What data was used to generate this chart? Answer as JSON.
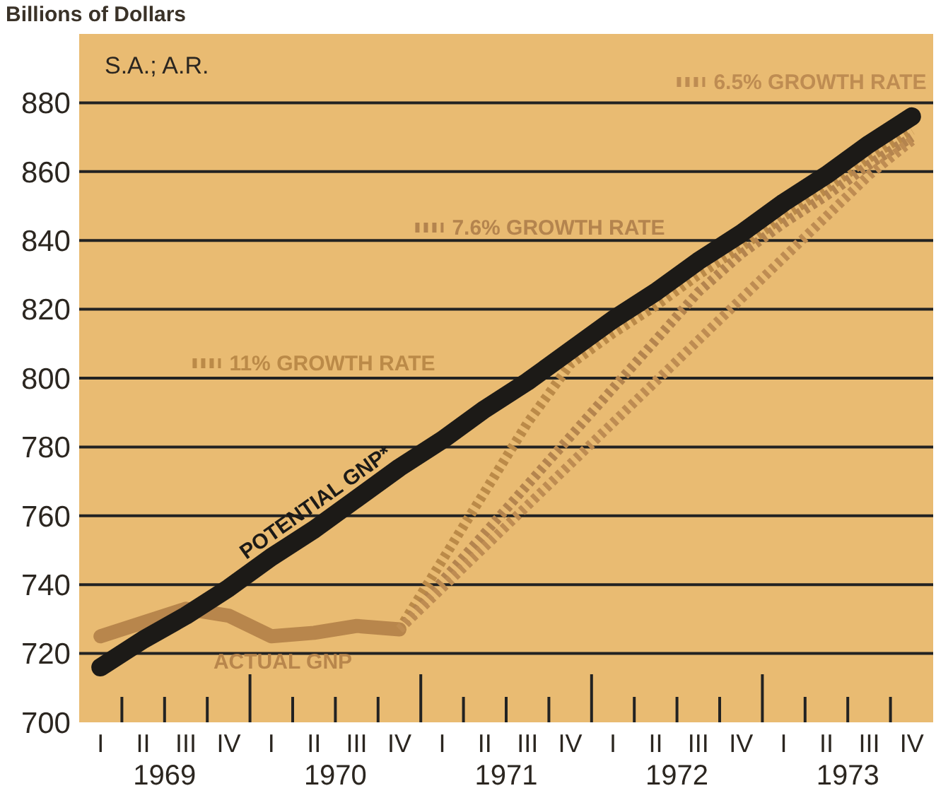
{
  "chart_data": {
    "type": "line",
    "ylabel": "Billions of Dollars",
    "annotations": [
      "S.A.; A.R.",
      "1969",
      "1970",
      "1971",
      "1972",
      "1973"
    ],
    "categories": [
      "I",
      "II",
      "III",
      "IV",
      "I",
      "II",
      "III",
      "IV",
      "I",
      "II",
      "III",
      "IV",
      "I",
      "II",
      "III",
      "IV",
      "I",
      "II",
      "III",
      "IV"
    ],
    "ylim": [
      700,
      900
    ],
    "yticks": [
      700,
      720,
      740,
      760,
      780,
      800,
      820,
      840,
      860,
      880
    ],
    "grid": "y",
    "legend": "top",
    "series": [
      {
        "name": "POTENTIAL GNP*",
        "color": "#1c1a17",
        "line_style": "solid",
        "values": [
          716,
          724,
          731,
          739,
          748,
          756,
          765,
          774,
          782,
          791,
          799,
          808,
          817,
          825,
          834,
          842,
          851,
          859,
          868,
          876
        ]
      },
      {
        "name": "ACTUAL GNP",
        "color": "#b8864c",
        "line_style": "solid",
        "values": [
          725,
          729,
          733,
          731,
          725,
          726,
          728,
          727,
          null,
          null,
          null,
          null,
          null,
          null,
          null,
          null,
          null,
          null,
          null,
          null
        ]
      },
      {
        "name": "11% GROWTH RATE",
        "color": "#bb8a48",
        "line_style": "dotted",
        "values": [
          null,
          null,
          null,
          null,
          null,
          null,
          null,
          727,
          747,
          767,
          787,
          804,
          813,
          821,
          830,
          838,
          847,
          855,
          864,
          872
        ]
      },
      {
        "name": "7.6% GROWTH RATE",
        "color": "#b4844e",
        "line_style": "dotted",
        "values": [
          null,
          null,
          null,
          null,
          null,
          null,
          null,
          727,
          741,
          755,
          769,
          783,
          797,
          811,
          825,
          836,
          845,
          853,
          862,
          870
        ]
      },
      {
        "name": "6.5% GROWTH RATE",
        "color": "#be8c52",
        "line_style": "dotted",
        "values": [
          null,
          null,
          null,
          null,
          null,
          null,
          null,
          727,
          739,
          751,
          763,
          775,
          787,
          799,
          811,
          823,
          835,
          847,
          859,
          869
        ]
      }
    ]
  }
}
